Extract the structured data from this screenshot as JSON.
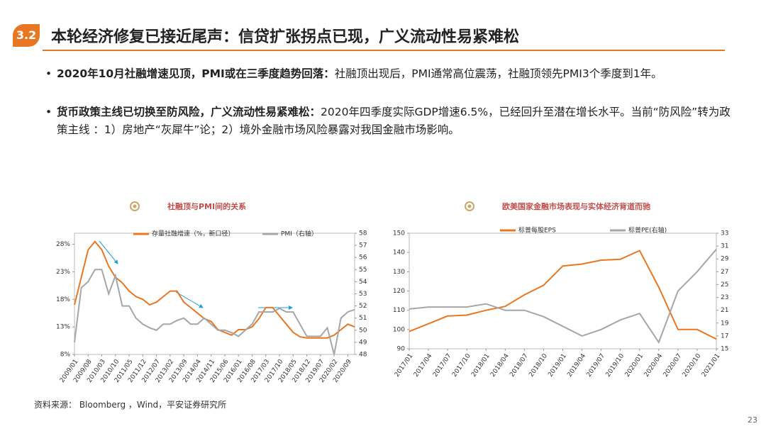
{
  "header": {
    "badge": "3.2",
    "title": "本轮经济修复已接近尾声：信贷扩张拐点已现，广义流动性易紧难松"
  },
  "bullets": [
    {
      "lead": "2020年10月社融增速见顶，PMI或在三季度趋势回落：",
      "body": "社融顶出现后，PMI通常高位震荡，社融顶领先PMI3个季度到1年。"
    },
    {
      "lead": "货币政策主线已切换至防风险，广义流动性易紧难松：",
      "body": "2020年四季度实际GDP增速6.5%，已经回升至潜在增长水平。当前“防风险”转为政策主线 ：1）房地产“灰犀牛”论；2）境外金融市场风险暴露对我国金融市场影响。"
    }
  ],
  "chart_data": [
    {
      "type": "line",
      "title": "社融顶与PMI间的关系",
      "categories": [
        "2009/01",
        null,
        "2009/08",
        null,
        "2010/03",
        null,
        "2010/10",
        null,
        "2011/05",
        null,
        "2011/12",
        null,
        "2012/07",
        null,
        "2013/02",
        null,
        "2013/09",
        null,
        "2014/04",
        null,
        "2014/11",
        null,
        "2015/06",
        null,
        "2016/01",
        null,
        "2016/08",
        null,
        "2017/03",
        null,
        "2017/10",
        null,
        "2018/05",
        null,
        "2018/12",
        null,
        "2019/07",
        null,
        "2020/02",
        null,
        "2020/09",
        null
      ],
      "series": [
        {
          "name": "存量社融增速（%，新口径）",
          "color": "#E87722",
          "values": [
            17,
            22,
            27,
            28.5,
            27,
            24,
            22,
            21,
            19.5,
            18.5,
            18,
            17,
            17.5,
            18.5,
            19.5,
            19.5,
            17.5,
            16.5,
            15.5,
            14.5,
            14,
            12.5,
            12,
            11.5,
            12.5,
            12.5,
            13,
            14.5,
            16.5,
            16.5,
            15,
            13.5,
            12,
            11.2,
            11,
            11,
            11,
            11,
            11.5,
            12.5,
            13.5,
            13
          ]
        },
        {
          "name": "PMI（右轴）",
          "color": "#A6A6A6",
          "axis": "y2",
          "values": [
            49,
            53.5,
            54,
            55,
            55,
            53,
            54.5,
            52,
            52,
            51,
            50.5,
            50.2,
            50,
            50.5,
            50.5,
            50.8,
            51,
            50.5,
            50.5,
            51,
            50.5,
            50,
            50,
            49.8,
            49.5,
            50,
            50.5,
            51.5,
            51.5,
            51.5,
            51.8,
            51.5,
            51.5,
            50.5,
            49.5,
            49.5,
            49.5,
            50.2,
            48,
            51,
            51.5,
            51.7
          ]
        }
      ],
      "ylim": [
        8,
        30
      ],
      "yticks": [
        {
          "value": 8,
          "label": "8%"
        },
        {
          "value": 13,
          "label": "13%"
        },
        {
          "value": 18,
          "label": "18%"
        },
        {
          "value": 23,
          "label": "23%"
        },
        {
          "value": 28,
          "label": "28%"
        }
      ],
      "y2lim": [
        48,
        58
      ],
      "y2ticks": [
        48,
        49,
        50,
        51,
        52,
        53,
        54,
        55,
        56,
        57,
        58
      ]
    },
    {
      "type": "line",
      "title": "欧美国家金融市场表现与实体经济背道而驰",
      "categories": [
        "2017/01",
        "2017/04",
        "2017/07",
        "2017/10",
        "2018/01",
        "2018/04",
        "2018/07",
        "2018/10",
        "2019/01",
        "2019/04",
        "2019/07",
        "2019/10",
        "2020/01",
        "2020/04",
        "2020/07",
        "2020/10",
        "2021/01"
      ],
      "series": [
        {
          "name": "标普每股EPS",
          "color": "#E87722",
          "values": [
            99,
            103,
            107,
            107.5,
            110,
            112,
            118,
            123,
            133,
            134,
            136,
            136.5,
            141,
            122,
            100,
            100,
            95
          ]
        },
        {
          "name": "标普PE(右轴)",
          "color": "#A6A6A6",
          "axis": "y2",
          "values": [
            21.2,
            21.5,
            21.5,
            21.5,
            22,
            21,
            21,
            20,
            18.5,
            17,
            18,
            19.5,
            20.5,
            16,
            24,
            27,
            30.5
          ]
        }
      ],
      "ylim": [
        90,
        150
      ],
      "yticks": [
        90,
        100,
        110,
        120,
        130,
        140,
        150
      ],
      "y2lim": [
        15,
        33
      ],
      "y2ticks": [
        15,
        17,
        19,
        21,
        23,
        25,
        27,
        29,
        31,
        33
      ]
    }
  ],
  "source": "资料来源： Bloomberg ，Wind，平安证券研究所",
  "page": "23"
}
